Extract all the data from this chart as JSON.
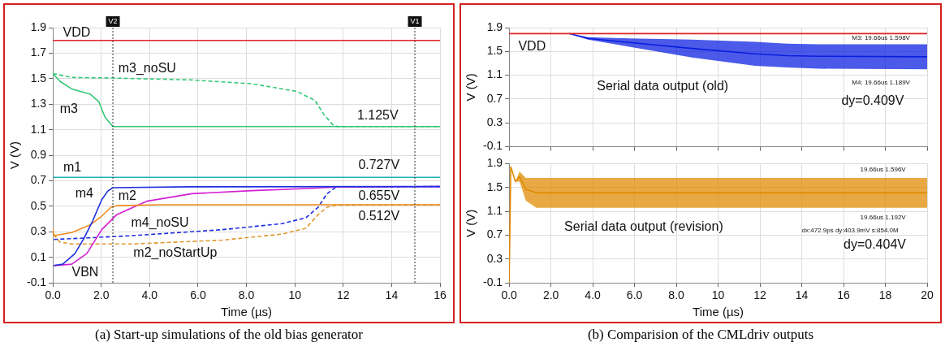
{
  "chart_data": [
    {
      "type": "line",
      "xlabel": "Time (µs)",
      "ylabel": "V (V)",
      "xlim": [
        0,
        16
      ],
      "ylim": [
        -0.1,
        1.9
      ],
      "xticks": [
        {
          "value": 0,
          "label": "0.0"
        },
        {
          "value": 2,
          "label": "2.0"
        },
        {
          "value": 4,
          "label": "4.0"
        },
        {
          "value": 6,
          "label": "6.0"
        },
        {
          "value": 8,
          "label": "8.0"
        },
        10,
        12,
        14,
        16
      ],
      "yticks": [
        -0.1,
        0.1,
        0.3,
        0.5,
        0.7,
        0.9,
        1.1,
        1.3,
        1.5,
        1.7,
        1.9
      ],
      "grid": true,
      "legend": false,
      "marker": "none",
      "series": [
        {
          "color": "#e02020",
          "x": [
            0,
            16
          ],
          "values": [
            1.8,
            1.8
          ]
        },
        {
          "color": "#33c776",
          "x": [
            0,
            0.29,
            0.78,
            1.53,
            1.9,
            2.15,
            2.48,
            16
          ],
          "values": [
            1.54,
            1.48,
            1.42,
            1.38,
            1.32,
            1.2,
            1.125,
            1.125
          ]
        },
        {
          "color": "#33c776",
          "line_style": "dashed",
          "x": [
            0,
            0.78,
            2.48,
            5.74,
            8.23,
            10.09,
            10.83,
            11.2,
            11.57,
            11.76,
            16
          ],
          "values": [
            1.54,
            1.51,
            1.505,
            1.49,
            1.46,
            1.4,
            1.33,
            1.22,
            1.14,
            1.125,
            1.125
          ]
        },
        {
          "color": "#20b2b8",
          "x": [
            0,
            16
          ],
          "values": [
            0.727,
            0.727
          ]
        },
        {
          "color": "#1f2fe0",
          "x": [
            0.04,
            0.41,
            0.91,
            1.28,
            1.65,
            2.02,
            2.27,
            2.48,
            5.74,
            16
          ],
          "values": [
            0.036,
            0.047,
            0.13,
            0.247,
            0.388,
            0.552,
            0.62,
            0.646,
            0.653,
            0.655
          ]
        },
        {
          "color": "#f08c1e",
          "x": [
            0,
            0.04,
            0.78,
            1.53,
            2.02,
            2.4,
            2.64,
            4.5,
            16
          ],
          "values": [
            0.33,
            0.27,
            0.294,
            0.353,
            0.423,
            0.493,
            0.505,
            0.512,
            0.512
          ]
        },
        {
          "color": "#d41ed4",
          "x": [
            0.04,
            0.78,
            1.4,
            2.02,
            2.64,
            3.88,
            5.74,
            8.23,
            10.71,
            11.7,
            16
          ],
          "values": [
            0.036,
            0.047,
            0.13,
            0.317,
            0.435,
            0.54,
            0.599,
            0.623,
            0.641,
            0.651,
            0.655
          ]
        },
        {
          "color": "#1f2fe0",
          "line_style": "dashed",
          "x": [
            0.04,
            3.26,
            6.99,
            9.47,
            10.46,
            10.96,
            11.33,
            11.7,
            16
          ],
          "values": [
            0.24,
            0.27,
            0.317,
            0.364,
            0.411,
            0.493,
            0.599,
            0.651,
            0.655
          ]
        },
        {
          "color": "#e09a30",
          "line_style": "dashed",
          "x": [
            0.04,
            0.29,
            0.78,
            3.26,
            6.99,
            9.47,
            10.46,
            10.96,
            11.33,
            11.76,
            16
          ],
          "values": [
            0.28,
            0.22,
            0.205,
            0.205,
            0.235,
            0.282,
            0.329,
            0.435,
            0.493,
            0.51,
            0.512
          ]
        }
      ],
      "ref_lines": [
        {
          "axis": "x",
          "value": 2.48,
          "label": "V2",
          "line_style": "dotted"
        },
        {
          "axis": "x",
          "value": 14.96,
          "label": "V1",
          "line_style": "dotted"
        }
      ],
      "annotations": [
        "VDD",
        "m3_noSU",
        "m3",
        "1.125V",
        "m1",
        "0.727V",
        "m4",
        "m2",
        "0.655V",
        "0.512V",
        "m4_noSU",
        "m2_noStartUp",
        "VBN",
        "(a) Start-up simulations of the old bias generator"
      ]
    },
    {
      "type": "line",
      "ylabel": "V (V)",
      "xlim": [
        0,
        20
      ],
      "ylim": [
        -0.1,
        1.9
      ],
      "xticks": [
        0,
        2,
        4,
        6,
        8,
        10,
        12,
        14,
        16,
        18,
        20
      ],
      "yticks": [
        -0.1,
        0.3,
        0.7,
        1.1,
        1.5,
        1.9
      ],
      "tick_labels": "y",
      "grid": true,
      "legend": false,
      "marker": "none",
      "series": [
        {
          "color": "#e02020",
          "x": [
            0,
            20
          ],
          "values": [
            1.8,
            1.8
          ]
        },
        {
          "color": "#0a1ee0",
          "x": [
            2.87,
            3.77,
            5.74,
            8.75,
            11.77,
            13.3,
            14.8,
            20
          ],
          "values": [
            1.8,
            1.72,
            1.65,
            1.55,
            1.46,
            1.43,
            1.42,
            1.41
          ],
          "upper": [
            1.8,
            1.74,
            1.72,
            1.7,
            1.66,
            1.63,
            1.62,
            1.62
          ],
          "lower": [
            1.8,
            1.7,
            1.58,
            1.4,
            1.26,
            1.23,
            1.21,
            1.2
          ]
        }
      ],
      "annotations": [
        "VDD",
        "Serial data output (old)",
        "dy=0.409V",
        "M3: 19.66us 1.598V",
        "M4: 19.66us 1.189V"
      ]
    },
    {
      "type": "line",
      "xlabel": "Time (µs)",
      "ylabel": "V (V)",
      "xlim": [
        0,
        20
      ],
      "ylim": [
        -0.1,
        1.9
      ],
      "xticks": [
        {
          "value": 0,
          "label": "0.0"
        },
        {
          "value": 2,
          "label": "2.0"
        },
        {
          "value": 4,
          "label": "4.0"
        },
        {
          "value": 6,
          "label": "6.0"
        },
        {
          "value": 8,
          "label": "8.0"
        },
        10,
        12,
        14,
        16,
        18,
        20
      ],
      "yticks": [
        -0.1,
        0.3,
        0.7,
        1.1,
        1.5,
        1.9
      ],
      "grid": true,
      "legend": false,
      "marker": "none",
      "series": [
        {
          "color": "#e08a00",
          "x": [
            0,
            0.08
          ],
          "values": [
            -0.1,
            1.85
          ]
        },
        {
          "color": "#e08a00",
          "x": [
            0.08,
            0.3,
            0.5,
            0.8,
            1.3,
            20
          ],
          "values": [
            1.85,
            1.6,
            1.68,
            1.47,
            1.41,
            1.41
          ],
          "upper": [
            1.85,
            1.6,
            1.77,
            1.66,
            1.66,
            1.66
          ],
          "lower": [
            1.85,
            1.6,
            1.6,
            1.28,
            1.16,
            1.16
          ]
        }
      ],
      "annotations": [
        "Serial data output (revision)",
        "dy=0.404V",
        "19.66us 1.596V",
        "19.66us 1.192V",
        "dx:472.9ps dy:403.9mV s:854.0M",
        "(b) Comparision of the CMLdriv outputs"
      ]
    }
  ]
}
